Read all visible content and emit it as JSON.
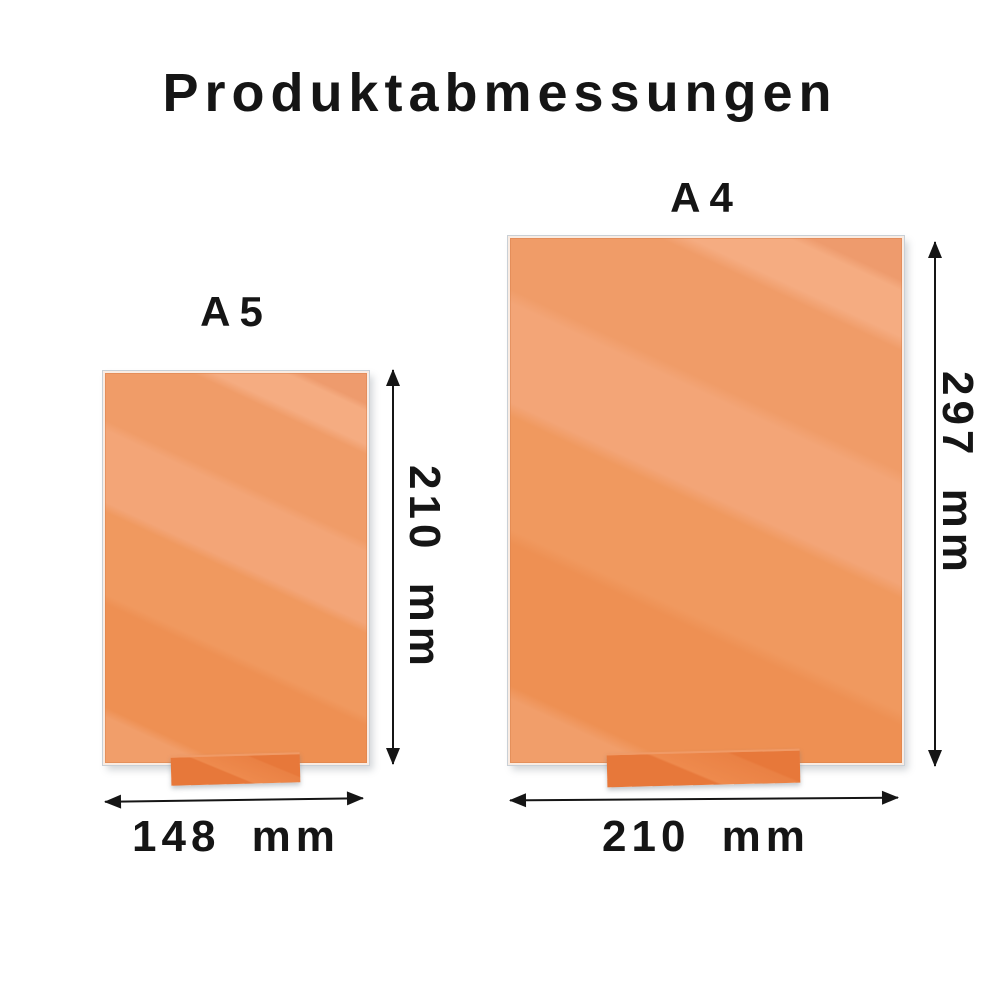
{
  "title": "Produktabmessungen",
  "sizes": [
    {
      "name": "A5",
      "width_label": "148 mm",
      "height_label": "210 mm"
    },
    {
      "name": "A4",
      "width_label": "210 mm",
      "height_label": "297 mm"
    }
  ],
  "colors": {
    "background": "#ffffff",
    "text": "#151515",
    "arrow": "#151515",
    "panel_light": "#f3a577",
    "panel_medium": "#f0995f",
    "panel_dark": "#ee9053",
    "panel_highlight": "#f5ac81",
    "stand": "#e7783a"
  }
}
